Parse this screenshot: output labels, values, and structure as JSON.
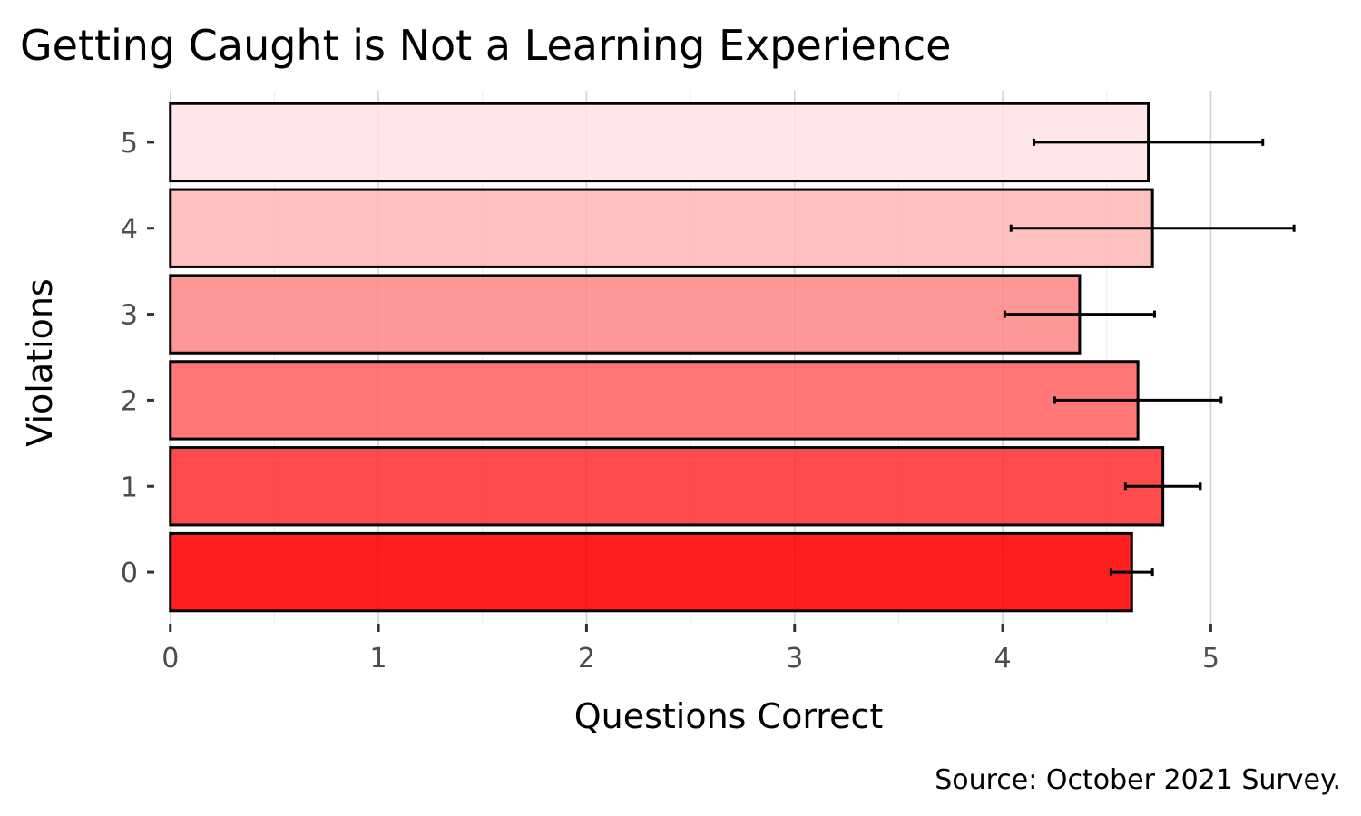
{
  "chart_data": {
    "type": "bar",
    "orientation": "horizontal",
    "title": "Getting Caught is Not a Learning Experience",
    "xlabel": "Questions Correct",
    "ylabel": "Violations",
    "caption": "Source: October 2021 Survey.",
    "categories": [
      "0",
      "1",
      "2",
      "3",
      "4",
      "5"
    ],
    "values": [
      4.62,
      4.77,
      4.65,
      4.37,
      4.72,
      4.7
    ],
    "error_low": [
      4.52,
      4.59,
      4.25,
      4.01,
      4.04,
      4.15
    ],
    "error_high": [
      4.72,
      4.95,
      5.05,
      4.73,
      5.4,
      5.25
    ],
    "bar_colors": [
      "#ff0000",
      "#ff3232",
      "#ff6464",
      "#ff8989",
      "#ffb7b7",
      "#ffe3e5"
    ],
    "xlim": [
      -0.06,
      5.43
    ],
    "xticks": [
      "0",
      "1",
      "2",
      "3",
      "4",
      "5"
    ],
    "grid": true,
    "legend": "none"
  }
}
